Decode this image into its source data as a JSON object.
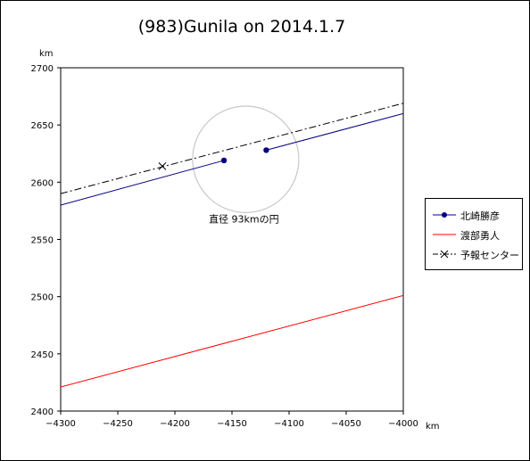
{
  "chart_data": {
    "type": "line",
    "title": "(983)Gunila on 2014.1.7",
    "xlabel": "km",
    "ylabel": "km",
    "xlim": [
      -4300,
      -4000
    ],
    "ylim": [
      2400,
      2700
    ],
    "xticks": [
      -4300,
      -4250,
      -4200,
      -4150,
      -4100,
      -4050,
      -4000
    ],
    "yticks": [
      2400,
      2450,
      2500,
      2550,
      2600,
      2650,
      2700
    ],
    "grid": false,
    "legend_position": "right",
    "series": [
      {
        "name": "北崎勝彦",
        "color": "#000080",
        "style": "line-markers",
        "segments": [
          {
            "x": [
              -4300,
              -4157
            ],
            "y": [
              2580,
              2619
            ]
          },
          {
            "x": [
              -4120,
              -4000
            ],
            "y": [
              2628,
              2660
            ]
          }
        ],
        "points": [
          {
            "x": -4157,
            "y": 2619
          },
          {
            "x": -4120,
            "y": 2628
          }
        ]
      },
      {
        "name": "渡部勇人",
        "color": "#ff0000",
        "style": "line",
        "segments": [
          {
            "x": [
              -4300,
              -4000
            ],
            "y": [
              2421,
              2501
            ]
          }
        ]
      },
      {
        "name": "予報センター",
        "color": "#000000",
        "style": "dash-dot",
        "segments": [
          {
            "x": [
              -4300,
              -4000
            ],
            "y": [
              2590,
              2669
            ]
          }
        ],
        "points": [
          {
            "x": -4211,
            "y": 2614
          }
        ]
      }
    ],
    "circle": {
      "center_x": -4138,
      "center_y": 2620,
      "diameter_km": 93,
      "color": "#c8c8c8",
      "label": "直径 93kmの円"
    }
  }
}
